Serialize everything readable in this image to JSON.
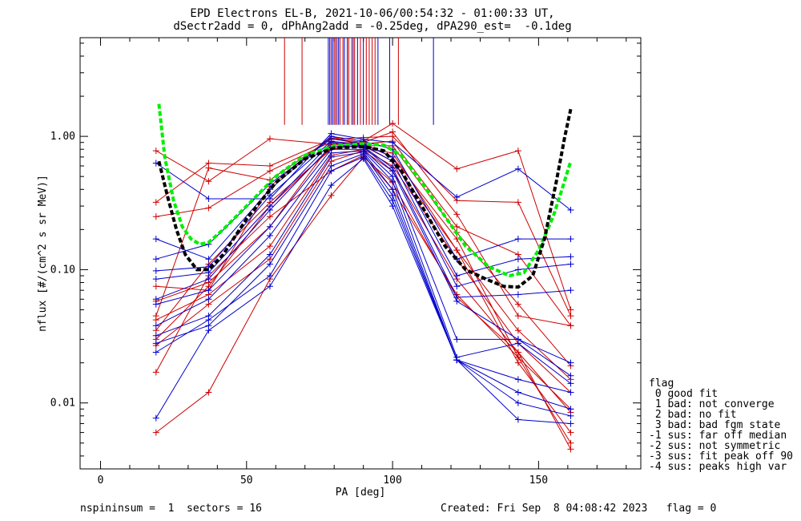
{
  "header": {
    "title_line1": "EPD Electrons EL-B, 2021-10-06/00:54:32 - 01:00:33 UT,",
    "title_line2": "dSectr2add = 0, dPhAng2add = -0.25deg, dPA290_est=  -0.1deg"
  },
  "footer": {
    "left": "nspininsum =  1  sectors = 16",
    "right": "Created: Fri Sep  8 04:08:42 2023   flag = 0"
  },
  "legend": {
    "title": "flag",
    "items": [
      " 0 good fit",
      " 1 bad: not converge",
      " 2 bad: no fit",
      " 3 bad: bad fgm state",
      "-1 sus: far off median",
      "-2 sus: not symmetric",
      "-3 sus: fit peak off 90",
      "-4 sus: peaks high var"
    ]
  },
  "colors": {
    "red": "#cc0000",
    "blue": "#0000cc",
    "green": "#00ee00",
    "black": "#000000"
  },
  "chart_data": {
    "type": "line",
    "xlabel": "PA [deg]",
    "ylabel": "nflux [#/(cm^2 s sr MeV)]",
    "xlim": [
      -7,
      185
    ],
    "ylim": [
      0.0032,
      5.5
    ],
    "yscale": "log",
    "xticks": [
      0,
      50,
      100,
      150
    ],
    "yticks": [
      {
        "v": 0.01,
        "label": "0.01"
      },
      {
        "v": 0.1,
        "label": "0.10"
      },
      {
        "v": 1.0,
        "label": "1.00"
      }
    ],
    "x": [
      19,
      37,
      58,
      79,
      90,
      100,
      122,
      143,
      161
    ],
    "series": [
      {
        "color": "red",
        "values": [
          0.78,
          0.46,
          0.96,
          0.87,
          0.92,
          1.25,
          0.57,
          0.78,
          0.05
        ]
      },
      {
        "color": "red",
        "values": [
          0.32,
          0.63,
          0.6,
          0.95,
          0.98,
          1.0,
          0.33,
          0.32,
          0.045
        ]
      },
      {
        "color": "red",
        "values": [
          0.25,
          0.29,
          0.55,
          0.91,
          0.88,
          0.92,
          0.21,
          0.13,
          0.038
        ]
      },
      {
        "color": "red",
        "values": [
          0.075,
          0.07,
          0.42,
          1.0,
          0.85,
          0.85,
          0.19,
          0.055,
          0.019
        ]
      },
      {
        "color": "red",
        "values": [
          0.058,
          0.08,
          0.21,
          0.88,
          0.82,
          0.75,
          0.14,
          0.035,
          0.015
        ]
      },
      {
        "color": "red",
        "values": [
          0.042,
          0.065,
          0.15,
          0.72,
          0.8,
          0.6,
          0.12,
          0.028,
          0.012
        ]
      },
      {
        "color": "red",
        "values": [
          0.035,
          0.11,
          0.32,
          0.8,
          0.87,
          0.7,
          0.17,
          0.022,
          0.009
        ]
      },
      {
        "color": "red",
        "values": [
          0.027,
          0.055,
          0.12,
          0.65,
          0.78,
          0.55,
          0.085,
          0.024,
          0.0085
        ]
      },
      {
        "color": "red",
        "values": [
          0.017,
          0.09,
          0.25,
          0.55,
          0.72,
          0.4,
          0.065,
          0.022,
          0.005
        ]
      },
      {
        "color": "red",
        "values": [
          0.006,
          0.012,
          0.085,
          0.36,
          0.7,
          0.45,
          0.062,
          0.024,
          0.0045
        ]
      },
      {
        "color": "red",
        "values": [
          0.045,
          0.58,
          0.47,
          0.97,
          0.9,
          1.08,
          0.26,
          0.045,
          0.038
        ]
      },
      {
        "color": "red",
        "values": [
          0.03,
          0.075,
          0.3,
          0.82,
          0.85,
          0.65,
          0.14,
          0.02,
          0.006
        ]
      },
      {
        "color": "blue",
        "values": [
          0.63,
          0.34,
          0.34,
          1.05,
          0.95,
          0.9,
          0.35,
          0.57,
          0.28
        ]
      },
      {
        "color": "blue",
        "values": [
          0.17,
          0.12,
          0.4,
          1.0,
          0.92,
          0.8,
          0.12,
          0.17,
          0.17
        ]
      },
      {
        "color": "blue",
        "values": [
          0.12,
          0.155,
          0.44,
          0.96,
          0.88,
          0.7,
          0.09,
          0.12,
          0.125
        ]
      },
      {
        "color": "blue",
        "values": [
          0.098,
          0.105,
          0.36,
          0.92,
          0.86,
          0.65,
          0.075,
          0.1,
          0.11
        ]
      },
      {
        "color": "blue",
        "values": [
          0.085,
          0.095,
          0.3,
          0.9,
          0.84,
          0.58,
          0.062,
          0.065,
          0.07
        ]
      },
      {
        "color": "blue",
        "values": [
          0.06,
          0.085,
          0.28,
          0.85,
          0.83,
          0.55,
          0.058,
          0.03,
          0.02
        ]
      },
      {
        "color": "blue",
        "values": [
          0.055,
          0.07,
          0.21,
          0.8,
          0.8,
          0.5,
          0.03,
          0.03,
          0.016
        ]
      },
      {
        "color": "blue",
        "values": [
          0.038,
          0.06,
          0.18,
          0.75,
          0.78,
          0.46,
          0.022,
          0.028,
          0.014
        ]
      },
      {
        "color": "blue",
        "values": [
          0.032,
          0.045,
          0.13,
          0.7,
          0.76,
          0.4,
          0.021,
          0.015,
          0.012
        ]
      },
      {
        "color": "blue",
        "values": [
          0.028,
          0.038,
          0.11,
          0.6,
          0.74,
          0.36,
          0.021,
          0.012,
          0.009
        ]
      },
      {
        "color": "blue",
        "values": [
          0.024,
          0.042,
          0.09,
          0.55,
          0.7,
          0.33,
          0.021,
          0.01,
          0.008
        ]
      },
      {
        "color": "blue",
        "values": [
          0.0077,
          0.035,
          0.075,
          0.43,
          0.68,
          0.3,
          0.021,
          0.0075,
          0.007
        ]
      }
    ],
    "fits": [
      {
        "color": "green",
        "points": [
          [
            20,
            1.75
          ],
          [
            22,
            0.7
          ],
          [
            25,
            0.33
          ],
          [
            28,
            0.21
          ],
          [
            31,
            0.17
          ],
          [
            34,
            0.155
          ],
          [
            37,
            0.16
          ],
          [
            42,
            0.2
          ],
          [
            50,
            0.3
          ],
          [
            60,
            0.5
          ],
          [
            70,
            0.72
          ],
          [
            80,
            0.85
          ],
          [
            90,
            0.88
          ],
          [
            97,
            0.86
          ],
          [
            103,
            0.72
          ],
          [
            110,
            0.45
          ],
          [
            118,
            0.25
          ],
          [
            125,
            0.15
          ],
          [
            133,
            0.105
          ],
          [
            140,
            0.09
          ],
          [
            145,
            0.095
          ],
          [
            150,
            0.14
          ],
          [
            155,
            0.25
          ],
          [
            158,
            0.4
          ],
          [
            161,
            0.65
          ]
        ]
      },
      {
        "color": "black",
        "points": [
          [
            20,
            0.65
          ],
          [
            23,
            0.35
          ],
          [
            26,
            0.2
          ],
          [
            29,
            0.13
          ],
          [
            33,
            0.1
          ],
          [
            37,
            0.1
          ],
          [
            42,
            0.13
          ],
          [
            50,
            0.24
          ],
          [
            60,
            0.45
          ],
          [
            70,
            0.68
          ],
          [
            80,
            0.82
          ],
          [
            90,
            0.84
          ],
          [
            97,
            0.78
          ],
          [
            103,
            0.55
          ],
          [
            110,
            0.3
          ],
          [
            118,
            0.15
          ],
          [
            125,
            0.1
          ],
          [
            132,
            0.085
          ],
          [
            138,
            0.075
          ],
          [
            143,
            0.074
          ],
          [
            148,
            0.09
          ],
          [
            152,
            0.17
          ],
          [
            156,
            0.45
          ],
          [
            159,
            1.0
          ],
          [
            161,
            1.6
          ]
        ]
      }
    ],
    "vlines": [
      {
        "color": "red",
        "x": [
          63,
          69,
          79,
          80,
          81,
          82,
          83,
          85,
          86,
          87,
          89,
          91,
          92,
          93,
          94,
          102
        ]
      },
      {
        "color": "blue",
        "x": [
          78,
          78.5,
          79.5,
          80.5,
          81.5,
          83.5,
          84.5,
          86.5,
          88,
          90,
          95,
          99,
          114
        ]
      }
    ]
  }
}
